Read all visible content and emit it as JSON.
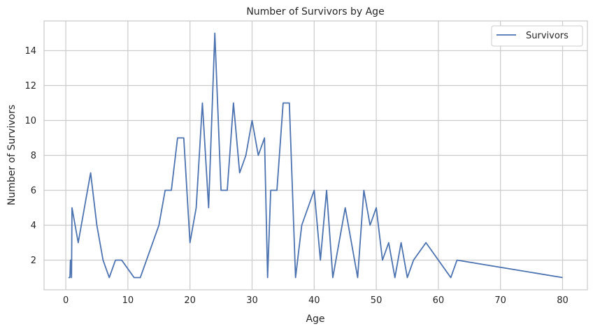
{
  "chart_data": {
    "type": "line",
    "title": "Number of Survivors by Age",
    "xlabel": "Age",
    "ylabel": "Number of Survivors",
    "xlim": [
      -3.5,
      84
    ],
    "ylim": [
      0.3,
      15.7
    ],
    "xticks": [
      0,
      10,
      20,
      30,
      40,
      50,
      60,
      70,
      80
    ],
    "yticks": [
      2,
      4,
      6,
      8,
      10,
      12,
      14
    ],
    "grid": true,
    "legend_position": "top-right",
    "colors": {
      "line": "#4c72b0",
      "grid": "#cccccc",
      "axis": "#cccccc"
    },
    "series": [
      {
        "name": "Survivors",
        "x": [
          0.42,
          0.67,
          0.75,
          0.83,
          0.92,
          1,
          2,
          3,
          4,
          5,
          6,
          7,
          8,
          9,
          11,
          12,
          15,
          16,
          17,
          18,
          19,
          20,
          21,
          22,
          23,
          24,
          25,
          26,
          27,
          28,
          29,
          30,
          31,
          32,
          32.5,
          33,
          34,
          35,
          36,
          37,
          38,
          40,
          41,
          42,
          43,
          44,
          45,
          46,
          47,
          48,
          49,
          50,
          51,
          52,
          53,
          54,
          55,
          56,
          58,
          62,
          63,
          80
        ],
        "y": [
          1,
          1,
          2,
          2,
          1,
          5,
          3,
          5,
          7,
          4,
          2,
          1,
          2,
          2,
          1,
          1,
          4,
          6,
          6,
          9,
          9,
          3,
          5,
          11,
          5,
          15,
          6,
          6,
          11,
          7,
          8,
          10,
          8,
          9,
          1,
          6,
          6,
          11,
          11,
          1,
          4,
          6,
          2,
          6,
          1,
          3,
          5,
          3,
          1,
          6,
          4,
          5,
          2,
          3,
          1,
          3,
          1,
          2,
          3,
          1,
          2,
          1
        ]
      }
    ]
  }
}
